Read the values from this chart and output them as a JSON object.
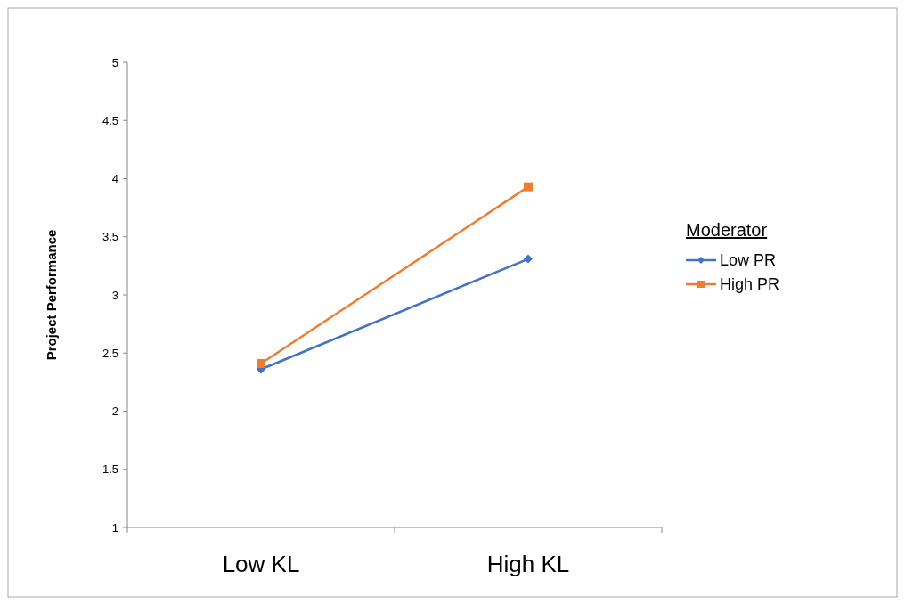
{
  "chart_data": {
    "type": "line",
    "ylabel": "Project Performance",
    "categories": [
      "Low KL",
      "High KL"
    ],
    "series": [
      {
        "name": "Low PR",
        "color": "#4472c4",
        "marker": "diamond",
        "values": [
          2.36,
          3.31
        ]
      },
      {
        "name": "High PR",
        "color": "#ed7d31",
        "marker": "square",
        "values": [
          2.41,
          3.93
        ]
      }
    ],
    "ylim": [
      1,
      5
    ],
    "yticks": [
      1,
      1.5,
      2,
      2.5,
      3,
      3.5,
      4,
      4.5,
      5
    ],
    "legend": "right",
    "legend_title": "Moderator",
    "grid": false
  }
}
